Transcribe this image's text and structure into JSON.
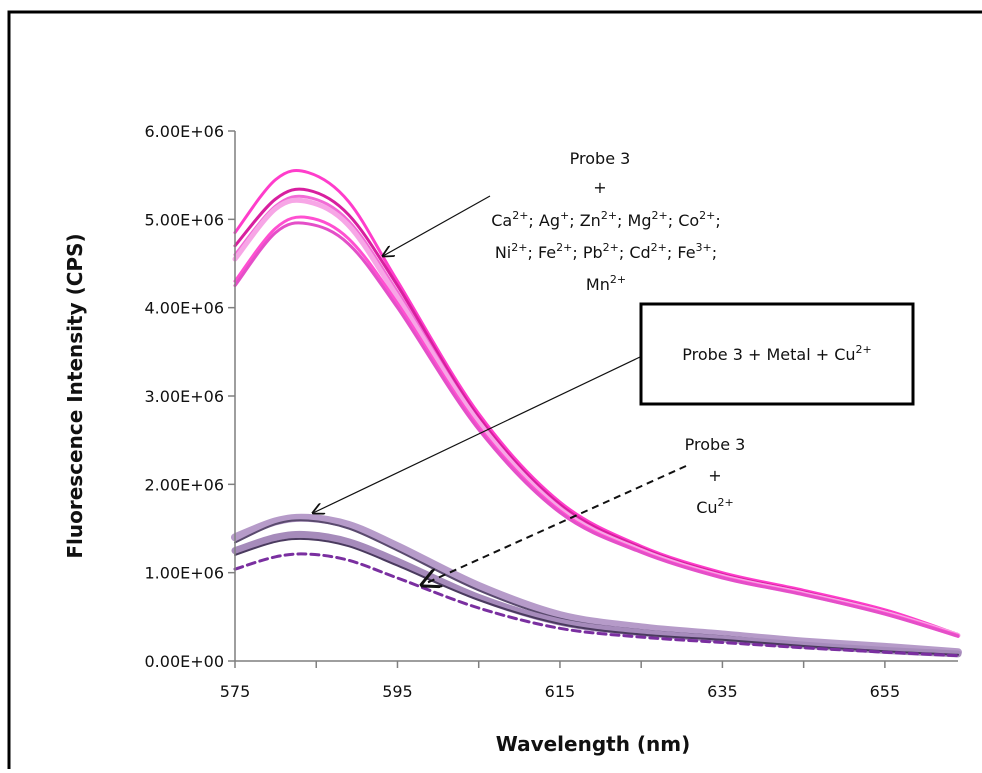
{
  "chart_data": {
    "type": "line",
    "title": "",
    "xlabel": "Wavelength (nm)",
    "ylabel": "Fluorescence Intensity (CPS)",
    "xlim": [
      575,
      664
    ],
    "ylim": [
      0,
      6000000
    ],
    "x_ticks": [
      575,
      595,
      615,
      635,
      655
    ],
    "x_tick_labels": [
      "575",
      "595",
      "615",
      "635",
      "655"
    ],
    "y_ticks": [
      0,
      1000000,
      2000000,
      3000000,
      4000000,
      5000000,
      6000000
    ],
    "y_tick_labels": [
      "0.00E+00",
      "1.00E+06",
      "2.00E+06",
      "3.00E+06",
      "4.00E+06",
      "5.00E+06",
      "6.00E+06"
    ],
    "grid": false,
    "legend": "none",
    "series": [
      {
        "x": [
          575,
          580,
          584,
          589,
          595,
          605,
          615,
          625,
          635,
          645,
          655,
          664
        ],
        "values": [
          4850000,
          5450000,
          5530000,
          5200000,
          4300000,
          2800000,
          1800000,
          1300000,
          1000000,
          800000,
          580000,
          300000
        ],
        "color": "#ff3dcb",
        "width": 3
      },
      {
        "x": [
          575,
          580,
          584,
          589,
          595,
          605,
          615,
          625,
          635,
          645,
          655,
          664
        ],
        "values": [
          4700000,
          5230000,
          5330000,
          5050000,
          4250000,
          2760000,
          1770000,
          1280000,
          980000,
          780000,
          560000,
          300000
        ],
        "color": "#d81f9f",
        "width": 3
      },
      {
        "x": [
          575,
          580,
          584,
          589,
          595,
          605,
          615,
          625,
          635,
          645,
          655,
          664
        ],
        "values": [
          4600000,
          5150000,
          5250000,
          4980000,
          4180000,
          2720000,
          1740000,
          1260000,
          965000,
          770000,
          550000,
          300000
        ],
        "color": "#f26bd6",
        "width": 3
      },
      {
        "x": [
          575,
          580,
          584,
          589,
          595,
          605,
          615,
          625,
          635,
          645,
          655,
          664
        ],
        "values": [
          4550000,
          5120000,
          5200000,
          4930000,
          4120000,
          2700000,
          1720000,
          1250000,
          955000,
          760000,
          545000,
          290000
        ],
        "color": "#f7a6e6",
        "width": 5
      },
      {
        "x": [
          575,
          580,
          584,
          589,
          595,
          605,
          615,
          625,
          635,
          645,
          655,
          664
        ],
        "values": [
          4300000,
          4900000,
          5020000,
          4780000,
          4050000,
          2650000,
          1700000,
          1240000,
          950000,
          755000,
          540000,
          290000
        ],
        "color": "#ff4fd1",
        "width": 3
      },
      {
        "x": [
          575,
          580,
          584,
          589,
          595,
          605,
          615,
          625,
          635,
          645,
          655,
          664
        ],
        "values": [
          4250000,
          4850000,
          4950000,
          4720000,
          4000000,
          2620000,
          1680000,
          1230000,
          940000,
          750000,
          530000,
          280000
        ],
        "color": "#e44fc8",
        "width": 3
      },
      {
        "x": [
          575,
          580,
          584,
          589,
          595,
          605,
          615,
          625,
          635,
          645,
          655,
          664
        ],
        "values": [
          1400000,
          1580000,
          1620000,
          1540000,
          1300000,
          850000,
          520000,
          380000,
          300000,
          220000,
          160000,
          100000
        ],
        "color": "#b69bc9",
        "width": 8
      },
      {
        "x": [
          575,
          580,
          584,
          589,
          595,
          605,
          615,
          625,
          635,
          645,
          655,
          664
        ],
        "values": [
          1340000,
          1550000,
          1590000,
          1500000,
          1250000,
          800000,
          480000,
          350000,
          280000,
          200000,
          140000,
          90000
        ],
        "color": "#5a4a6e",
        "width": 2
      },
      {
        "x": [
          575,
          580,
          584,
          589,
          595,
          605,
          615,
          625,
          635,
          645,
          655,
          664
        ],
        "values": [
          1250000,
          1400000,
          1430000,
          1350000,
          1130000,
          720000,
          440000,
          320000,
          250000,
          180000,
          120000,
          80000
        ],
        "color": "#a68bbb",
        "width": 7
      },
      {
        "x": [
          575,
          580,
          584,
          589,
          595,
          605,
          615,
          625,
          635,
          645,
          655,
          664
        ],
        "values": [
          1200000,
          1350000,
          1380000,
          1300000,
          1080000,
          690000,
          420000,
          300000,
          240000,
          170000,
          110000,
          70000
        ],
        "color": "#4a3a5e",
        "width": 2
      },
      {
        "x": [
          575,
          580,
          584,
          589,
          595,
          605,
          615,
          625,
          635,
          645,
          655,
          664
        ],
        "values": [
          1040000,
          1180000,
          1210000,
          1140000,
          940000,
          600000,
          370000,
          270000,
          210000,
          150000,
          100000,
          60000
        ],
        "color": "#7a2fa0",
        "width": 3,
        "dashed": true
      }
    ],
    "annotations": {
      "top_group": {
        "line1": "Probe 3",
        "line2": "+",
        "ions_line1": [
          {
            "base": "Ca",
            "sup": "2+",
            "sep": "; "
          },
          {
            "base": "Ag",
            "sup": "+",
            "sep": "; "
          },
          {
            "base": "Zn",
            "sup": "2+",
            "sep": "; "
          },
          {
            "base": "Mg",
            "sup": "2+",
            "sep": "; "
          },
          {
            "base": "Co",
            "sup": "2+",
            "sep": ";"
          }
        ],
        "ions_line2": [
          {
            "base": "Ni",
            "sup": "2+",
            "sep": "; "
          },
          {
            "base": "Fe",
            "sup": "2+",
            "sep": "; "
          },
          {
            "base": "Pb",
            "sup": "2+",
            "sep": "; "
          },
          {
            "base": "Cd",
            "sup": "2+",
            "sep": "; "
          },
          {
            "base": "Fe",
            "sup": "3+",
            "sep": ";"
          }
        ],
        "ions_line3": [
          {
            "base": "Mn",
            "sup": "2+",
            "sep": ""
          }
        ]
      },
      "box_label": {
        "base": "Probe 3 + Metal + Cu",
        "sup": "2+"
      },
      "cu_group": {
        "line1": "Probe 3",
        "line2": "+",
        "line3": {
          "base": "Cu",
          "sup": "2+"
        }
      }
    }
  }
}
